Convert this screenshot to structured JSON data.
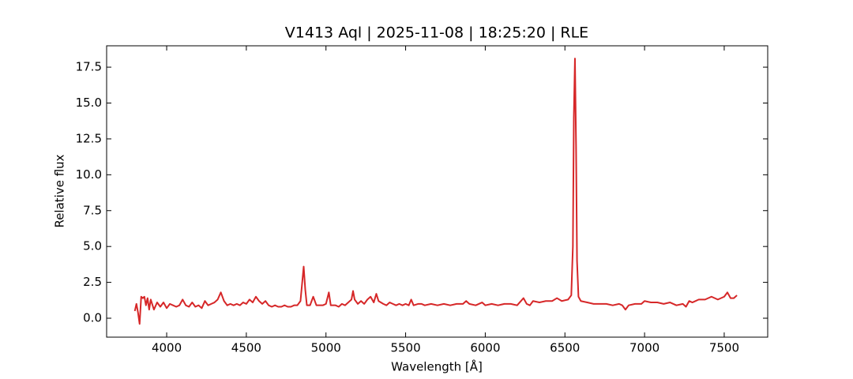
{
  "chart_data": {
    "type": "line",
    "title": "V1413 Aql | 2025-11-08 | 18:25:20 | RLE",
    "x_label": "Wavelength [Å]",
    "y_label": "Relative flux",
    "xlim": [
      3623,
      7773
    ],
    "ylim": [
      -1.32,
      18.99
    ],
    "xticks": [
      4000,
      4500,
      5000,
      5500,
      6000,
      6500,
      7000,
      7500
    ],
    "yticks": [
      {
        "value": 0,
        "label": "0.0"
      },
      {
        "value": 2.5,
        "label": "2.5"
      },
      {
        "value": 5,
        "label": "5.0"
      },
      {
        "value": 7.5,
        "label": "7.5"
      },
      {
        "value": 10,
        "label": "10.0"
      },
      {
        "value": 12.5,
        "label": "12.5"
      },
      {
        "value": 15,
        "label": "15.0"
      },
      {
        "value": 17.5,
        "label": "17.5"
      }
    ],
    "grid": false,
    "x": [
      3800,
      3810,
      3820,
      3830,
      3840,
      3850,
      3860,
      3870,
      3880,
      3890,
      3900,
      3920,
      3940,
      3960,
      3980,
      4000,
      4020,
      4040,
      4060,
      4080,
      4100,
      4120,
      4140,
      4160,
      4180,
      4200,
      4220,
      4240,
      4260,
      4280,
      4300,
      4320,
      4340,
      4360,
      4380,
      4400,
      4420,
      4440,
      4460,
      4480,
      4500,
      4520,
      4540,
      4560,
      4580,
      4600,
      4620,
      4640,
      4660,
      4680,
      4700,
      4720,
      4740,
      4760,
      4780,
      4800,
      4820,
      4840,
      4850,
      4860,
      4870,
      4880,
      4900,
      4920,
      4940,
      4960,
      4980,
      5000,
      5018,
      5030,
      5060,
      5080,
      5100,
      5120,
      5140,
      5160,
      5170,
      5180,
      5200,
      5220,
      5240,
      5260,
      5280,
      5300,
      5316,
      5330,
      5360,
      5380,
      5400,
      5420,
      5440,
      5460,
      5480,
      5500,
      5520,
      5535,
      5550,
      5580,
      5600,
      5620,
      5660,
      5700,
      5740,
      5780,
      5820,
      5860,
      5880,
      5900,
      5940,
      5980,
      6000,
      6040,
      6080,
      6120,
      6160,
      6200,
      6240,
      6260,
      6280,
      6300,
      6340,
      6380,
      6420,
      6450,
      6480,
      6520,
      6540,
      6550,
      6556,
      6563,
      6570,
      6576,
      6585,
      6600,
      6640,
      6680,
      6720,
      6760,
      6800,
      6840,
      6860,
      6880,
      6900,
      6940,
      6980,
      7000,
      7040,
      7080,
      7120,
      7160,
      7200,
      7240,
      7260,
      7280,
      7300,
      7340,
      7380,
      7420,
      7460,
      7500,
      7520,
      7540,
      7560,
      7580
    ],
    "series": [
      {
        "color": "#d62728",
        "values": [
          0.5,
          1.0,
          0.4,
          -0.4,
          1.5,
          1.4,
          1.5,
          0.9,
          1.4,
          0.6,
          1.3,
          0.6,
          1.1,
          0.8,
          1.1,
          0.7,
          1.0,
          0.9,
          0.8,
          0.9,
          1.3,
          0.9,
          0.8,
          1.1,
          0.8,
          0.9,
          0.7,
          1.2,
          0.9,
          1.0,
          1.1,
          1.3,
          1.8,
          1.2,
          0.9,
          1.0,
          0.9,
          1.0,
          0.9,
          1.1,
          1.0,
          1.3,
          1.1,
          1.5,
          1.2,
          1.0,
          1.2,
          0.9,
          0.8,
          0.9,
          0.8,
          0.8,
          0.9,
          0.8,
          0.8,
          0.9,
          0.9,
          1.2,
          2.4,
          3.6,
          2.0,
          0.9,
          0.9,
          1.5,
          0.9,
          0.9,
          0.9,
          1.0,
          1.8,
          0.9,
          0.9,
          0.8,
          1.0,
          0.9,
          1.1,
          1.3,
          1.9,
          1.3,
          1.0,
          1.2,
          1.0,
          1.3,
          1.5,
          1.1,
          1.7,
          1.2,
          1.0,
          0.9,
          1.1,
          1.0,
          0.9,
          1.0,
          0.9,
          1.0,
          0.9,
          1.3,
          0.9,
          1.0,
          1.0,
          0.9,
          1.0,
          0.9,
          1.0,
          0.9,
          1.0,
          1.0,
          1.2,
          1.0,
          0.9,
          1.1,
          0.9,
          1.0,
          0.9,
          1.0,
          1.0,
          0.9,
          1.4,
          1.0,
          0.9,
          1.2,
          1.1,
          1.2,
          1.2,
          1.4,
          1.2,
          1.3,
          1.6,
          5.0,
          14.0,
          18.1,
          12.0,
          4.0,
          1.5,
          1.2,
          1.1,
          1.0,
          1.0,
          1.0,
          0.9,
          1.0,
          0.9,
          0.6,
          0.9,
          1.0,
          1.0,
          1.2,
          1.1,
          1.1,
          1.0,
          1.1,
          0.9,
          1.0,
          0.8,
          1.2,
          1.1,
          1.3,
          1.3,
          1.5,
          1.3,
          1.5,
          1.8,
          1.4,
          1.4,
          1.6
        ]
      }
    ]
  }
}
